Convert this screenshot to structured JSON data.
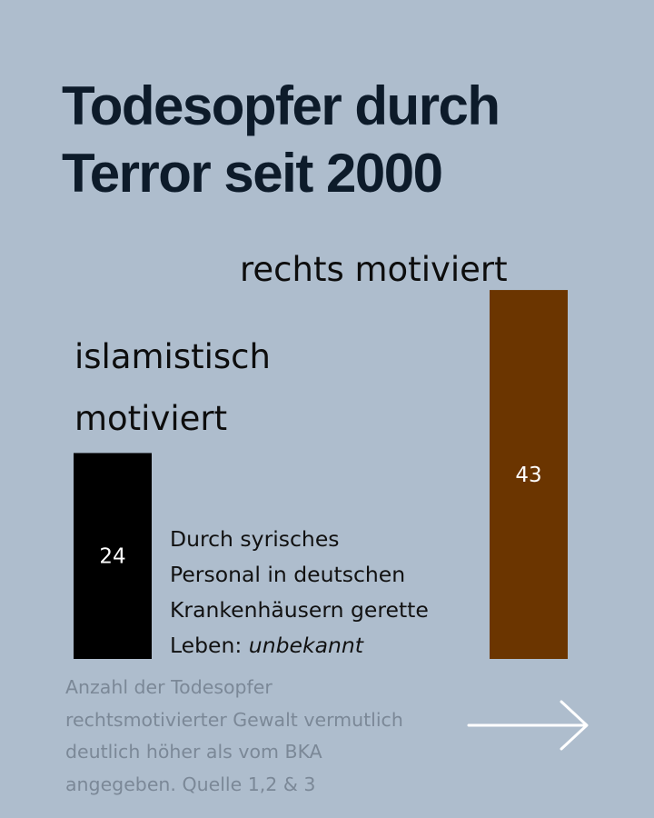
{
  "title": {
    "line1": "Todesopfer durch",
    "line2": "Terror seit 2000"
  },
  "chart_data": {
    "type": "bar",
    "title": "Todesopfer durch Terror seit 2000",
    "categories": [
      "islamistisch motiviert",
      "rechts motiviert"
    ],
    "category_lines": [
      [
        "islamistisch",
        "motiviert"
      ],
      [
        "rechts motiviert"
      ]
    ],
    "values": [
      24,
      43
    ],
    "value_labels": [
      "24",
      "43"
    ],
    "colors": [
      "#000000",
      "#6b3500"
    ]
  },
  "note": {
    "line1": "Durch syrisches",
    "line2": "Personal in deutschen",
    "line3": "Krankenhäusern gerette",
    "line4_prefix": "Leben: ",
    "line4_em": "unbekannt"
  },
  "footnote": {
    "line1": "Anzahl der Todesopfer",
    "line2": "rechtsmotivierter Gewalt vermutlich",
    "line3": "deutlich höher als vom BKA",
    "line4": "angegeben. Quelle 1,2 & 3"
  },
  "icons": {
    "next": "arrow-right-icon"
  }
}
